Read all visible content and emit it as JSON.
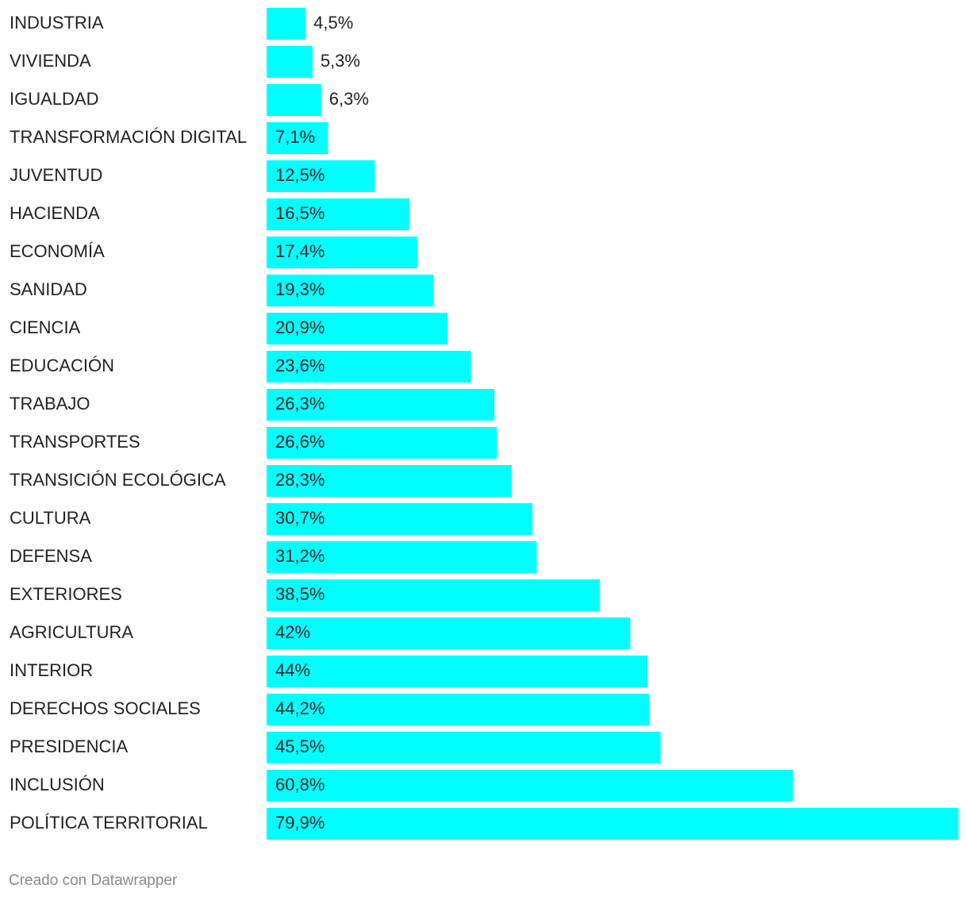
{
  "chart_data": {
    "type": "bar",
    "orientation": "horizontal",
    "color": "#00ffff",
    "categories": [
      "INDUSTRIA",
      "VIVIENDA",
      "IGUALDAD",
      "TRANSFORMACIÓN DIGITAL",
      "JUVENTUD",
      "HACIENDA",
      "ECONOMÍA",
      "SANIDAD",
      "CIENCIA",
      "EDUCACIÓN",
      "TRABAJO",
      "TRANSPORTES",
      "TRANSICIÓN ECOLÓGICA",
      "CULTURA",
      "DEFENSA",
      "EXTERIORES",
      "AGRICULTURA",
      "INTERIOR",
      "DERECHOS SOCIALES",
      "PRESIDENCIA",
      "INCLUSIÓN",
      "POLÍTICA TERRITORIAL"
    ],
    "values": [
      4.5,
      5.3,
      6.3,
      7.1,
      12.5,
      16.5,
      17.4,
      19.3,
      20.9,
      23.6,
      26.3,
      26.6,
      28.3,
      30.7,
      31.2,
      38.5,
      42,
      44,
      44.2,
      45.5,
      60.8,
      79.9
    ],
    "value_labels": [
      "4,5%",
      "5,3%",
      "6,3%",
      "7,1%",
      "12,5%",
      "16,5%",
      "17,4%",
      "19,3%",
      "20,9%",
      "23,6%",
      "26,3%",
      "26,6%",
      "28,3%",
      "30,7%",
      "31,2%",
      "38,5%",
      "42%",
      "44%",
      "44,2%",
      "45,5%",
      "60,8%",
      "79,9%"
    ],
    "credit": "Creado con Datawrapper"
  }
}
